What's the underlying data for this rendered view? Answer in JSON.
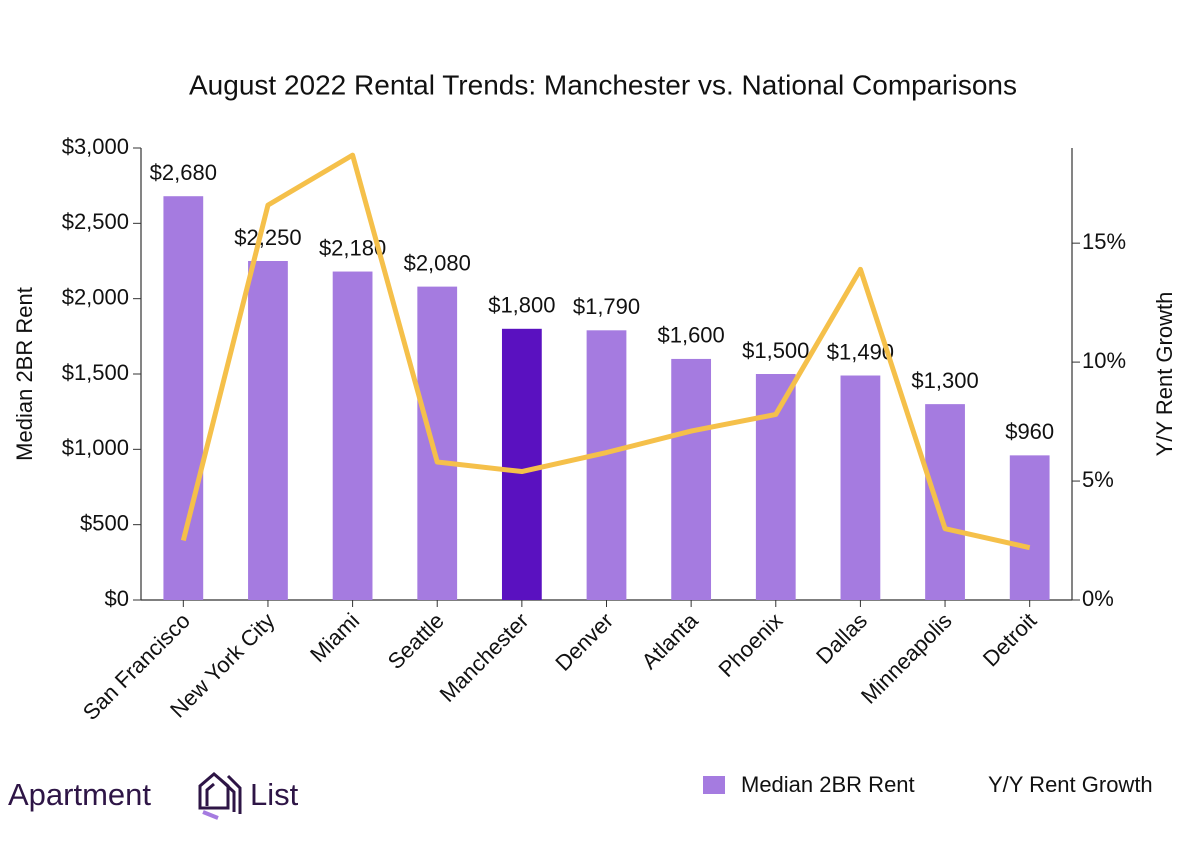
{
  "chart_data": {
    "type": "bar",
    "title": "August 2022 Rental Trends: Manchester vs. National Comparisons",
    "categories": [
      "San Francisco",
      "New York City",
      "Miami",
      "Seattle",
      "Manchester",
      "Denver",
      "Atlanta",
      "Phoenix",
      "Dallas",
      "Minneapolis",
      "Detroit"
    ],
    "series": [
      {
        "name": "Median 2BR Rent",
        "type": "bar",
        "color": "#a57be0",
        "colors": [
          "#a57be0",
          "#a57be0",
          "#a57be0",
          "#a57be0",
          "#5a11c0",
          "#a57be0",
          "#a57be0",
          "#a57be0",
          "#a57be0",
          "#a57be0",
          "#a57be0"
        ],
        "values": [
          2680,
          2250,
          2180,
          2080,
          1800,
          1790,
          1600,
          1500,
          1490,
          1300,
          960
        ],
        "value_labels": [
          "$2,680",
          "$2,250",
          "$2,180",
          "$2,080",
          "$1,800",
          "$1,790",
          "$1,600",
          "$1,500",
          "$1,490",
          "$1,300",
          "$960"
        ]
      },
      {
        "name": "Y/Y Rent Growth",
        "type": "line",
        "axis": "y2",
        "color": "#f5c04a",
        "values": [
          2.5,
          16.6,
          18.7,
          5.8,
          5.4,
          6.2,
          7.1,
          7.8,
          13.9,
          3.0,
          2.2
        ]
      }
    ],
    "ylabel": "Median 2BR Rent",
    "y2label": "Y/Y Rent Growth",
    "ylim": [
      0,
      3000
    ],
    "yticks": [
      {
        "value": 0,
        "label": "$0"
      },
      {
        "value": 500,
        "label": "$500"
      },
      {
        "value": 1000,
        "label": "$1,000"
      },
      {
        "value": 1500,
        "label": "$1,500"
      },
      {
        "value": 2000,
        "label": "$2,000"
      },
      {
        "value": 2500,
        "label": "$2,500"
      },
      {
        "value": 3000,
        "label": "$3,000"
      }
    ],
    "y2lim": [
      0,
      19
    ],
    "y2ticks": [
      {
        "value": 0,
        "label": "0%"
      },
      {
        "value": 5,
        "label": "5%"
      },
      {
        "value": 10,
        "label": "10%"
      },
      {
        "value": 15,
        "label": "15%"
      }
    ],
    "grid": false,
    "legend": "bottom-right"
  },
  "logo": {
    "left": "Apartment",
    "right": "List"
  }
}
